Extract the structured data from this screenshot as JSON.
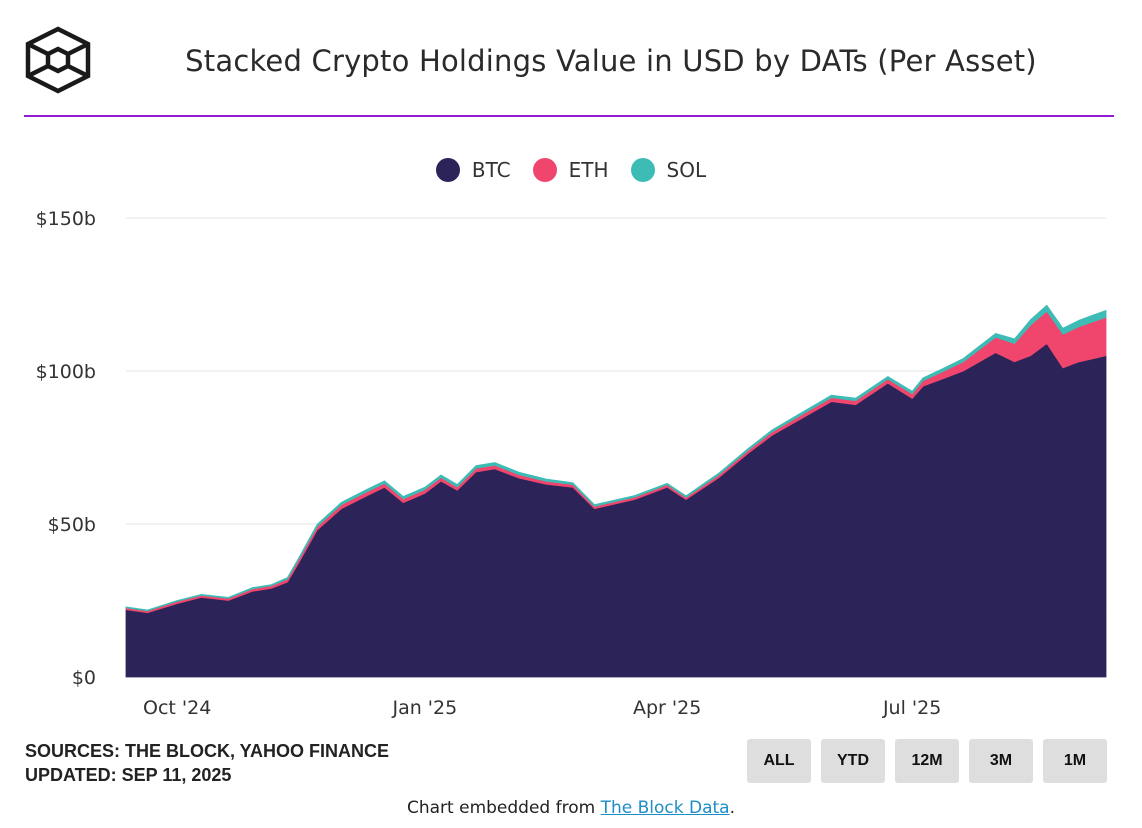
{
  "header": {
    "title": "Stacked Crypto Holdings Value in USD by DATs (Per Asset)",
    "accent_color": "#8f1bd3"
  },
  "logo": {
    "icon": "the-block-cube-logo"
  },
  "chart_data": {
    "type": "area",
    "stacked": true,
    "title": "Stacked Crypto Holdings Value in USD by DATs (Per Asset)",
    "xlabel": "",
    "ylabel": "",
    "y_unit": "billion USD",
    "ylim": [
      0,
      150
    ],
    "yticks": [
      0,
      50,
      100,
      150
    ],
    "ytick_labels": [
      "$0",
      "$50b",
      "$100b",
      "$150b"
    ],
    "x_range": [
      "2024-09-12",
      "2025-09-11"
    ],
    "xtick_labels": [
      "Oct '24",
      "Jan '25",
      "Apr '25",
      "Jul '25"
    ],
    "xtick_dates": [
      "2024-10-01",
      "2025-01-01",
      "2025-04-01",
      "2025-07-01"
    ],
    "grid": "horizontal",
    "legend_position": "top-center",
    "x": [
      "2024-09-12",
      "2024-09-20",
      "2024-10-01",
      "2024-10-10",
      "2024-10-20",
      "2024-10-29",
      "2024-11-05",
      "2024-11-11",
      "2024-11-15",
      "2024-11-22",
      "2024-12-01",
      "2024-12-10",
      "2024-12-17",
      "2024-12-24",
      "2025-01-01",
      "2025-01-07",
      "2025-01-13",
      "2025-01-20",
      "2025-01-27",
      "2025-02-05",
      "2025-02-15",
      "2025-02-25",
      "2025-03-05",
      "2025-03-10",
      "2025-03-20",
      "2025-04-01",
      "2025-04-08",
      "2025-04-20",
      "2025-05-01",
      "2025-05-10",
      "2025-05-22",
      "2025-06-01",
      "2025-06-10",
      "2025-06-22",
      "2025-07-01",
      "2025-07-05",
      "2025-07-11",
      "2025-07-20",
      "2025-08-01",
      "2025-08-08",
      "2025-08-14",
      "2025-08-20",
      "2025-08-26",
      "2025-09-01",
      "2025-09-06",
      "2025-09-11"
    ],
    "series": [
      {
        "name": "BTC",
        "color": "#2c2358",
        "values": [
          22,
          21,
          24,
          26,
          25,
          28,
          29,
          31,
          37,
          48,
          55,
          59,
          62,
          57,
          60,
          64,
          61,
          67,
          68,
          65,
          63,
          62,
          55,
          56,
          58,
          62,
          58,
          65,
          73,
          79,
          85,
          90,
          89,
          96,
          91,
          95,
          97,
          100,
          106,
          103,
          105,
          109,
          101,
          103,
          104,
          105
        ]
      },
      {
        "name": "ETH",
        "color": "#f0466e",
        "values": [
          0.6,
          0.6,
          0.7,
          0.7,
          0.7,
          0.8,
          0.8,
          1.0,
          1.1,
          1.2,
          1.3,
          1.3,
          1.3,
          1.2,
          1.2,
          1.2,
          1.1,
          1.2,
          1.2,
          1.1,
          1.0,
          0.9,
          0.8,
          0.8,
          0.8,
          0.8,
          0.7,
          0.9,
          1.0,
          1.1,
          1.2,
          1.3,
          1.3,
          1.4,
          1.5,
          1.8,
          2.2,
          3.0,
          5.0,
          6.0,
          10.0,
          10.5,
          11.0,
          11.5,
          12.0,
          12.5
        ]
      },
      {
        "name": "SOL",
        "color": "#3dbcb5",
        "values": [
          0.3,
          0.3,
          0.3,
          0.3,
          0.3,
          0.4,
          0.4,
          0.5,
          0.6,
          0.7,
          0.8,
          0.8,
          0.8,
          0.8,
          0.8,
          0.8,
          0.8,
          0.9,
          0.9,
          0.8,
          0.7,
          0.6,
          0.5,
          0.5,
          0.5,
          0.5,
          0.5,
          0.6,
          0.6,
          0.7,
          0.8,
          0.8,
          0.8,
          0.8,
          0.9,
          0.9,
          1.0,
          1.1,
          1.3,
          1.5,
          1.8,
          2.0,
          2.0,
          2.1,
          2.2,
          2.3
        ]
      }
    ]
  },
  "footer": {
    "sources_line": "SOURCES: THE BLOCK, YAHOO FINANCE",
    "updated_line": "UPDATED: SEP 11, 2025",
    "range_buttons": [
      "ALL",
      "YTD",
      "12M",
      "3M",
      "1M"
    ],
    "embed_prefix": "Chart embedded from ",
    "embed_link_text": "The Block Data",
    "embed_suffix": "."
  }
}
